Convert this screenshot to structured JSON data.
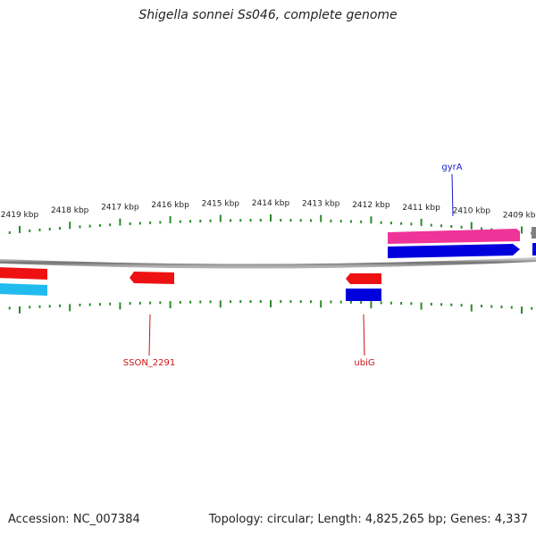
{
  "title": "Shigella sonnei Ss046, complete genome",
  "footer": {
    "accession": "Accession: NC_007384",
    "summary": "Topology: circular; Length: 4,825,265 bp; Genes: 4,337"
  },
  "colors": {
    "backbone": "#7a7a7a",
    "tick": "#2a8a2a",
    "forward_pink": "#ee3399",
    "forward_blue": "#0000dd",
    "reverse_red": "#ee1111",
    "reverse_cyan": "#22bbee",
    "gene_label_forward": "#1a1acc",
    "gene_label_reverse": "#cc1111"
  },
  "scale_labels": [
    "2419 kbp",
    "2418 kbp",
    "2417 kbp",
    "2416 kbp",
    "2415 kbp",
    "2414 kbp",
    "2413 kbp",
    "2412 kbp",
    "2411 kbp",
    "2410 kbp",
    "2409 kbp"
  ],
  "genes": [
    {
      "label": "gyrA",
      "strand": "forward"
    },
    {
      "label": "SSON_2291",
      "strand": "reverse"
    },
    {
      "label": "ubiG",
      "strand": "reverse"
    }
  ]
}
